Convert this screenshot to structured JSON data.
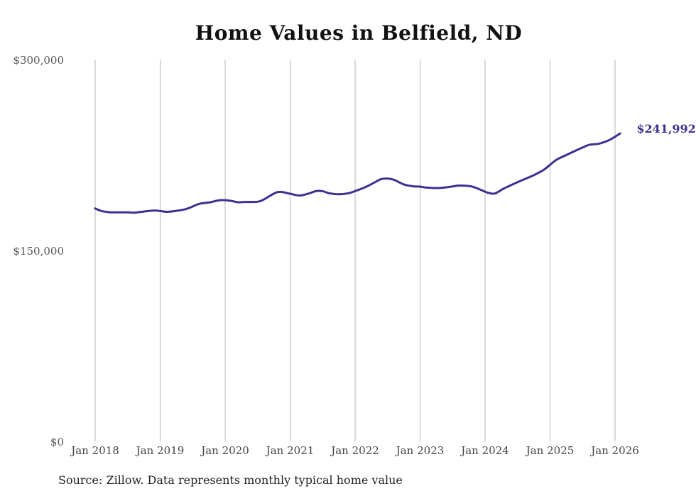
{
  "chart_data": {
    "type": "line",
    "title": "Home Values in Belfield, ND",
    "xlabel": "",
    "ylabel": "",
    "ylim": [
      0,
      300000
    ],
    "y_ticks": [
      {
        "value": 0,
        "label": "$0"
      },
      {
        "value": 150000,
        "label": "$150,000"
      },
      {
        "value": 300000,
        "label": "$300,000"
      }
    ],
    "x_ticks": [
      {
        "value": 2018.0,
        "label": "Jan 2018"
      },
      {
        "value": 2019.0,
        "label": "Jan 2019"
      },
      {
        "value": 2020.0,
        "label": "Jan 2020"
      },
      {
        "value": 2021.0,
        "label": "Jan 2021"
      },
      {
        "value": 2022.0,
        "label": "Jan 2022"
      },
      {
        "value": 2023.0,
        "label": "Jan 2023"
      },
      {
        "value": 2024.0,
        "label": "Jan 2024"
      },
      {
        "value": 2025.0,
        "label": "Jan 2025"
      },
      {
        "value": 2026.0,
        "label": "Jan 2026"
      }
    ],
    "xlim": [
      2018.0,
      2026.08
    ],
    "grid": "vertical",
    "series": [
      {
        "name": "Typical home value",
        "color": "#3b3191",
        "x": [
          2018.0,
          2018.1,
          2018.25,
          2018.5,
          2018.6,
          2018.75,
          2018.9,
          2019.0,
          2019.1,
          2019.2,
          2019.4,
          2019.6,
          2019.75,
          2019.9,
          2020.0,
          2020.1,
          2020.2,
          2020.3,
          2020.5,
          2020.6,
          2020.75,
          2020.85,
          2021.0,
          2021.15,
          2021.3,
          2021.4,
          2021.5,
          2021.6,
          2021.75,
          2021.9,
          2022.0,
          2022.15,
          2022.3,
          2022.4,
          2022.5,
          2022.6,
          2022.75,
          2022.9,
          2023.0,
          2023.1,
          2023.3,
          2023.5,
          2023.6,
          2023.8,
          2024.0,
          2024.05,
          2024.15,
          2024.3,
          2024.5,
          2024.75,
          2024.9,
          2025.0,
          2025.1,
          2025.25,
          2025.5,
          2025.6,
          2025.75,
          2025.9,
          2026.0,
          2026.08
        ],
        "values": [
          183000,
          181000,
          180000,
          180000,
          179700,
          180600,
          181400,
          181000,
          180400,
          180800,
          182600,
          186600,
          187700,
          189400,
          189500,
          188900,
          187900,
          188100,
          188300,
          190200,
          194700,
          196100,
          194600,
          193200,
          195000,
          196700,
          196600,
          195000,
          194200,
          195000,
          196700,
          199600,
          203500,
          206100,
          206500,
          205500,
          201900,
          200400,
          200200,
          199400,
          199100,
          200300,
          201000,
          200200,
          196200,
          195300,
          194800,
          199000,
          203700,
          209200,
          213300,
          217300,
          221300,
          225000,
          230900,
          233000,
          233900,
          236500,
          239400,
          241992
        ]
      }
    ],
    "end_label": "$241,992",
    "source": "Source: Zillow. Data represents monthly typical home value"
  }
}
